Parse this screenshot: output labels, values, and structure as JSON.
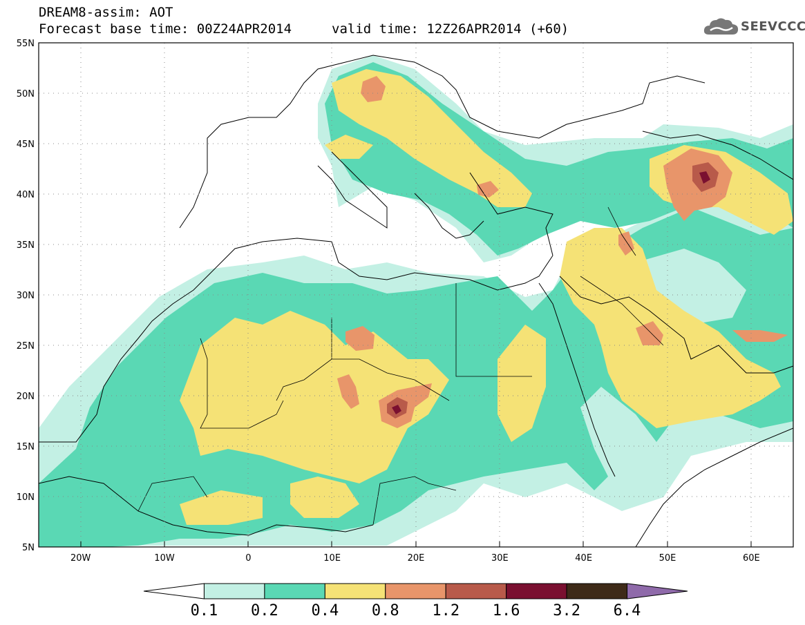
{
  "header": {
    "title": "DREAM8-assim: AOT",
    "base_time": "Forecast base time: 00Z24APR2014",
    "valid_time": "valid time: 12Z26APR2014 (+60)"
  },
  "logo": {
    "text": "SEEVCCC",
    "icon": "cloud-icon"
  },
  "map": {
    "lon_range": [
      -25,
      65
    ],
    "lat_range": [
      5,
      55
    ],
    "lon_ticks": [
      "20W",
      "10W",
      "0",
      "10E",
      "20E",
      "30E",
      "40E",
      "50E",
      "60E"
    ],
    "lat_ticks": [
      "55N",
      "50N",
      "45N",
      "40N",
      "35N",
      "30N",
      "25N",
      "20N",
      "15N",
      "10N",
      "5N"
    ],
    "gridlines": "dotted",
    "variable": "Aerosol optical thickness"
  },
  "colorbar": {
    "levels": [
      "0.1",
      "0.2",
      "0.4",
      "0.8",
      "1.2",
      "1.6",
      "3.2",
      "6.4"
    ],
    "colors": [
      "#ffffff",
      "#c3f0e4",
      "#5ad8b4",
      "#f5e276",
      "#e8956a",
      "#b85a4a",
      "#7a1030",
      "#3e2a18",
      "#8f6aaa"
    ]
  }
}
